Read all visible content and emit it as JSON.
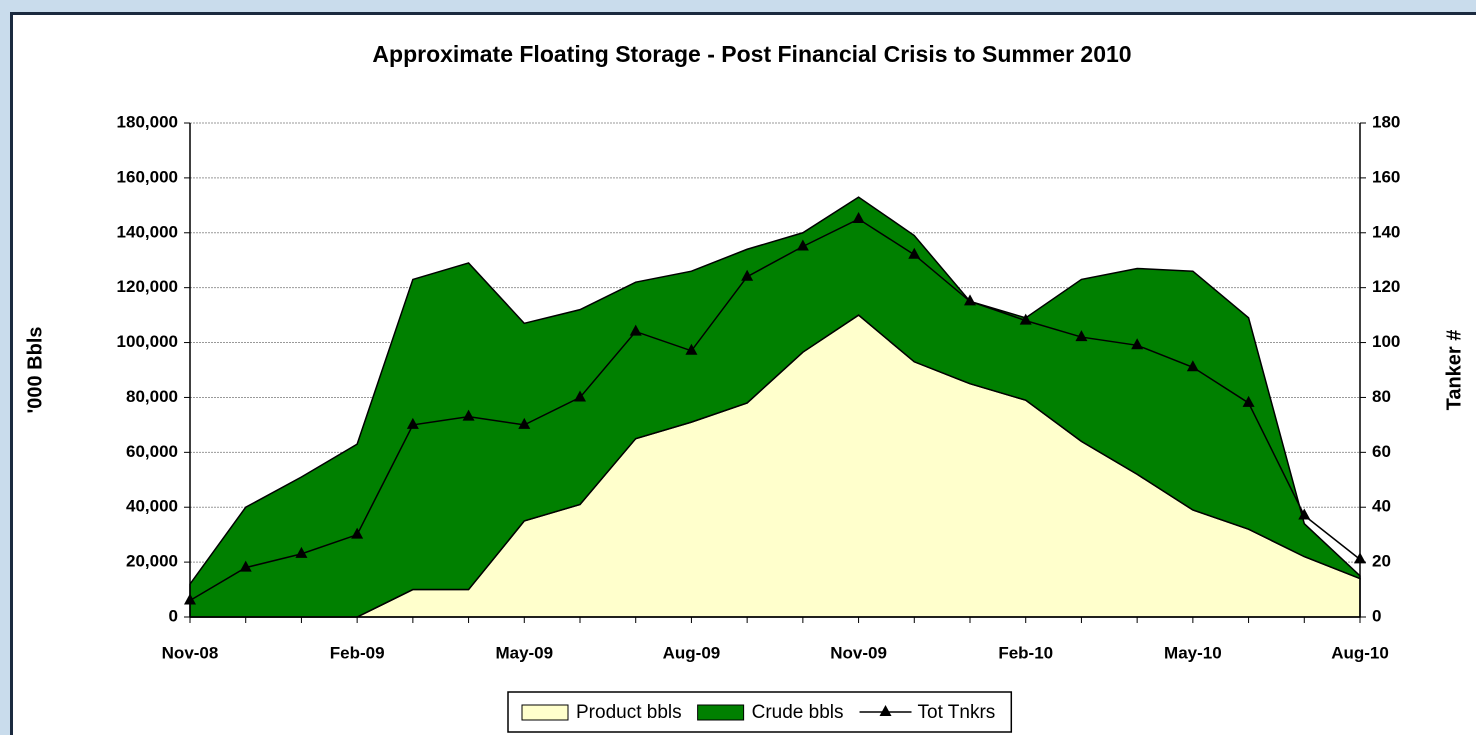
{
  "chart_data": {
    "type": "stacked-area-line",
    "title": "Approximate Floating Storage - Post Financial Crisis to Summer 2010",
    "y_label": "'000 Bbls",
    "y2_label": "Tanker #",
    "categories": [
      "Nov-08",
      null,
      null,
      "Feb-09",
      null,
      null,
      "May-09",
      null,
      null,
      "Aug-09",
      null,
      null,
      "Nov-09",
      null,
      null,
      "Feb-10",
      null,
      null,
      "May-10",
      null,
      null,
      "Aug-10"
    ],
    "series": [
      {
        "name": "Product bbls",
        "type": "area",
        "color": "#ffffcc",
        "values": [
          0,
          0,
          0,
          0,
          10000,
          10000,
          35000,
          41000,
          65000,
          71000,
          78000,
          96500,
          110000,
          93000,
          85000,
          79000,
          64000,
          52000,
          39000,
          32000,
          22000,
          14000
        ]
      },
      {
        "name": "Crude bbls",
        "type": "area",
        "color": "#008000",
        "values": [
          12000,
          40000,
          51000,
          63000,
          113000,
          119000,
          72000,
          71000,
          57000,
          55000,
          56000,
          43500,
          43000,
          46000,
          30000,
          30000,
          59000,
          75000,
          87000,
          77000,
          12000,
          1000
        ]
      },
      {
        "name": "Tot Tnkrs",
        "type": "line",
        "axis": "y2",
        "color": "#000000",
        "values": [
          6,
          18,
          23,
          30,
          70,
          73,
          70,
          80,
          104,
          97,
          124,
          135,
          145,
          132,
          115,
          108,
          102,
          99,
          91,
          78,
          37,
          21
        ]
      }
    ],
    "ylim": [
      0,
      180000
    ],
    "yticks": [
      {
        "value": 0,
        "label": "0"
      },
      {
        "value": 20000,
        "label": "20,000"
      },
      {
        "value": 40000,
        "label": "40,000"
      },
      {
        "value": 60000,
        "label": "60,000"
      },
      {
        "value": 80000,
        "label": "80,000"
      },
      {
        "value": 100000,
        "label": "100,000"
      },
      {
        "value": 120000,
        "label": "120,000"
      },
      {
        "value": 140000,
        "label": "140,000"
      },
      {
        "value": 160000,
        "label": "160,000"
      },
      {
        "value": 180000,
        "label": "180,000"
      }
    ],
    "y2lim": [
      0,
      180
    ],
    "y2ticks": [
      0,
      20,
      40,
      60,
      80,
      100,
      120,
      140,
      160,
      180
    ],
    "grid": true,
    "legend": "bottom"
  }
}
